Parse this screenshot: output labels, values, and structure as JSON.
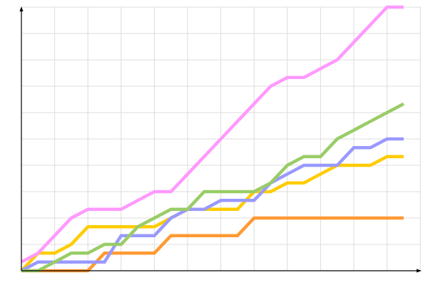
{
  "chart_data": {
    "type": "line",
    "title": "",
    "xlabel": "",
    "ylabel": "",
    "x": [
      0,
      1,
      2,
      3,
      4,
      5,
      6,
      7,
      8,
      9,
      10,
      11,
      12,
      13,
      14,
      15,
      16,
      17,
      18,
      19,
      20,
      21,
      22,
      23
    ],
    "xlim": [
      0,
      24
    ],
    "ylim": [
      0,
      30
    ],
    "grid": true,
    "y_grid_step": 3,
    "x_grid_step": 2,
    "legend": "none",
    "series": [
      {
        "color": "#ff9933",
        "values": [
          0,
          0,
          0,
          0,
          0,
          2,
          2,
          2,
          2,
          4,
          4,
          4,
          4,
          4,
          6,
          6,
          6,
          6,
          6,
          6,
          6,
          6,
          6,
          6
        ]
      },
      {
        "color": "#ffcc00",
        "values": [
          0,
          2,
          2,
          3,
          5,
          5,
          5,
          5,
          5,
          6,
          7,
          7,
          7,
          7,
          9,
          9,
          10,
          10,
          11,
          12,
          12,
          12,
          13,
          13
        ]
      },
      {
        "color": "#9999ff",
        "values": [
          0,
          1,
          1,
          1,
          1,
          1,
          4,
          4,
          4,
          6,
          7,
          7,
          8,
          8,
          8,
          10,
          11,
          12,
          12,
          12,
          14,
          14,
          15,
          15
        ]
      },
      {
        "color": "#99cc66",
        "values": [
          0,
          0,
          1,
          2,
          2,
          3,
          3,
          5,
          6,
          7,
          7,
          9,
          9,
          9,
          9,
          10,
          12,
          13,
          13,
          15,
          16,
          17,
          18,
          19
        ]
      },
      {
        "color": "#ff99ff",
        "values": [
          1,
          2,
          4,
          6,
          7,
          7,
          7,
          8,
          9,
          9,
          11,
          13,
          15,
          17,
          19,
          21,
          22,
          22,
          23,
          24,
          26,
          28,
          30,
          30
        ]
      }
    ]
  }
}
